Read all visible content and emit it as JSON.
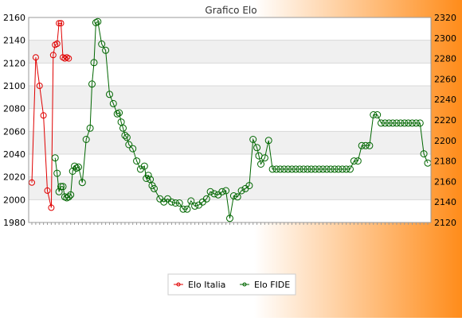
{
  "chart_data": {
    "type": "line",
    "title": "Grafico Elo",
    "y_left": {
      "min": 1980,
      "max": 2160,
      "step": 20,
      "ticks": [
        "1980",
        "2000",
        "2020",
        "2040",
        "2060",
        "2080",
        "2100",
        "2120",
        "2140",
        "2160"
      ]
    },
    "y_right": {
      "min": 2120,
      "max": 2320,
      "step": 20,
      "ticks": [
        "2120",
        "2140",
        "2160",
        "2180",
        "2200",
        "2220",
        "2240",
        "2260",
        "2280",
        "2300",
        "2320"
      ]
    },
    "grid": true,
    "legend_position": "bottom",
    "x_count": 205,
    "colors": {
      "elo_italia": "#e00000",
      "elo_fide": "#006600",
      "background_start": "#ffffff",
      "background_end": "#ff8c1a",
      "band": "#f0f0f0"
    },
    "series": [
      {
        "name": "Elo Italia",
        "axis": "left",
        "x": [
          0,
          2,
          4,
          6,
          8,
          10,
          11,
          12,
          13,
          14,
          15,
          16,
          17,
          18,
          19
        ],
        "values": [
          2015,
          2125,
          2100,
          2074,
          2008,
          1993,
          2127,
          2136,
          2137,
          2155,
          2155,
          2125,
          2124,
          2125,
          2124
        ]
      },
      {
        "name": "Elo FIDE",
        "axis": "right",
        "x": [
          12,
          13,
          14,
          15,
          16,
          17,
          18,
          19,
          20,
          21,
          22,
          23,
          24,
          26,
          28,
          30,
          31,
          32,
          33,
          34,
          36,
          38,
          40,
          42,
          44,
          45,
          46,
          47,
          48,
          49,
          50,
          52,
          54,
          56,
          58,
          59,
          60,
          61,
          62,
          63,
          66,
          68,
          70,
          72,
          74,
          76,
          78,
          80,
          82,
          84,
          86,
          88,
          90,
          92,
          94,
          96,
          98,
          100,
          102,
          104,
          106,
          108,
          110,
          112,
          114,
          116,
          117,
          118,
          120,
          122,
          124,
          126,
          128,
          130,
          132,
          134,
          136,
          138,
          140,
          142,
          144,
          146,
          148,
          150,
          152,
          154,
          156,
          158,
          160,
          162,
          164,
          166,
          168,
          170,
          172,
          174,
          176,
          178,
          180,
          182,
          184,
          186,
          188,
          190,
          192,
          194,
          196,
          198,
          200,
          202,
          204
        ],
        "values": [
          2183,
          2168,
          2150,
          2155,
          2155,
          2145,
          2144,
          2145,
          2147,
          2170,
          2175,
          2173,
          2174,
          2159,
          2201,
          2212,
          2255,
          2276,
          2315,
          2316,
          2294,
          2288,
          2245,
          2236,
          2226,
          2227,
          2218,
          2212,
          2205,
          2203,
          2196,
          2192,
          2180,
          2172,
          2175,
          2163,
          2166,
          2162,
          2156,
          2153,
          2143,
          2140,
          2143,
          2140,
          2139,
          2139,
          2133,
          2133,
          2141,
          2136,
          2137,
          2140,
          2143,
          2150,
          2148,
          2147,
          2150,
          2151,
          2124,
          2146,
          2145,
          2151,
          2153,
          2156,
          2201,
          2193,
          2185,
          2177,
          2183,
          2200,
          2172,
          2172,
          2172,
          2172,
          2172,
          2172,
          2172,
          2172,
          2172,
          2172,
          2172,
          2172,
          2172,
          2172,
          2172,
          2172,
          2172,
          2172,
          2172,
          2172,
          2172,
          2180,
          2180,
          2195,
          2195,
          2195,
          2225,
          2225,
          2217,
          2217,
          2217,
          2217,
          2217,
          2217,
          2217,
          2217,
          2217,
          2217,
          2217,
          2187,
          2178
        ]
      }
    ]
  },
  "legend": {
    "items": [
      {
        "label": "Elo Italia"
      },
      {
        "label": "Elo FIDE"
      }
    ]
  }
}
